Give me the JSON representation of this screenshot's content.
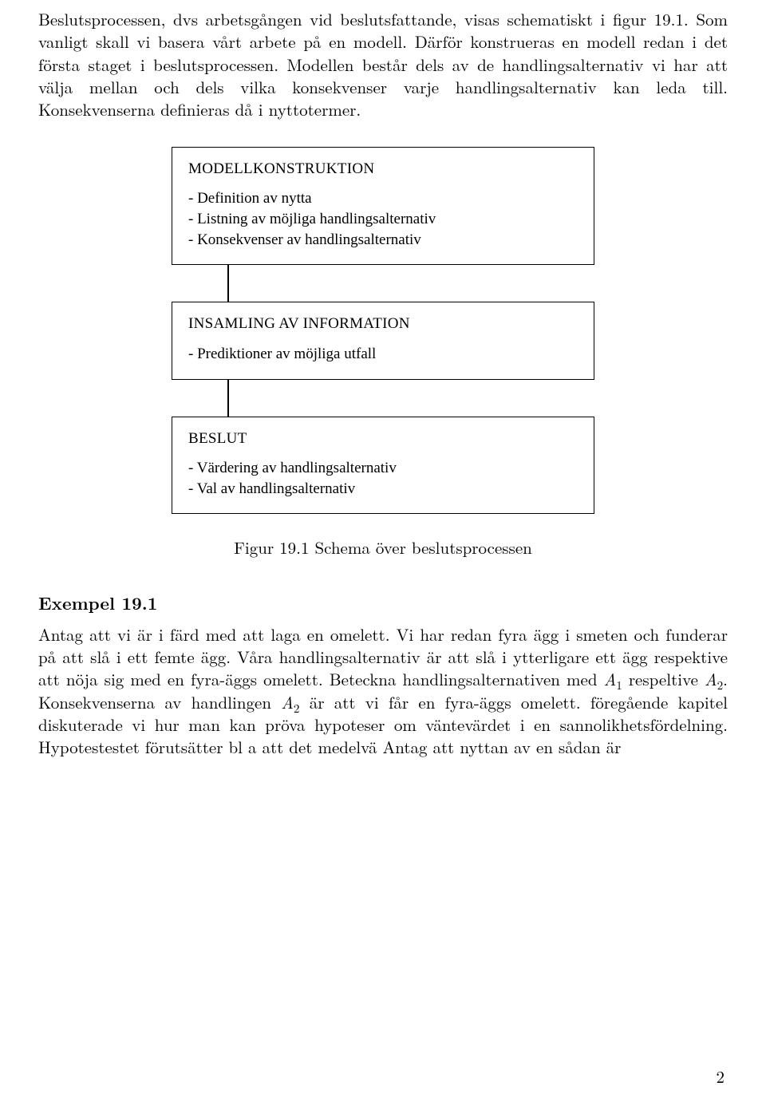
{
  "paragraph1": "Beslutsprocessen, dvs arbetsgången vid beslutsfattande, visas schematiskt i figur 19.1. Som vanligt skall vi basera vårt arbete på en modell. Därför konstrueras en modell redan i det första staget i beslutsprocessen. Modellen består dels av de handlingsalternativ vi har att välja mellan och dels vilka konsekvenser varje handlingsalternativ kan leda till. Konsekvenserna definieras då i nyttotermer.",
  "flow": {
    "box1": {
      "title": "MODELLKONSTRUKTION",
      "items": [
        "- Definition av nytta",
        "- Listning av möjliga handlingsalternativ",
        "- Konsekvenser av handlingsalternativ"
      ]
    },
    "box2": {
      "title": "INSAMLING AV INFORMATION",
      "items": [
        "- Prediktioner av möjliga utfall"
      ]
    },
    "box3": {
      "title": "BESLUT",
      "items": [
        "- Värdering av handlingsalternativ",
        "- Val av handlingsalternativ"
      ]
    }
  },
  "figure_caption": "Figur 19.1 Schema över beslutsprocessen",
  "example_heading": "Exempel 19.1",
  "paragraph2_a": "Antag att vi är i färd med att laga en omelett. Vi har redan fyra ägg i smeten och funderar på att slå i ett femte ägg. Våra handlingsalternativ är att slå i ytterligare ett ägg respektive att nöja sig med en fyra-äggs omelett. Beteckna handlingsalternativen med ",
  "paragraph2_b": " respeltive ",
  "paragraph2_c": ". Konsekvenserna av handlingen ",
  "paragraph2_d": " är att vi får en fyra-äggs omelett. föregående kapitel diskuterade vi hur man kan pröva hypoteser om väntevärdet i en sannolikhetsfördelning. Hypotestestet förutsätter bl a att det medelvä Antag att nyttan av en sådan är",
  "A": "A",
  "sub1": "1",
  "sub2": "2",
  "page_number": "2"
}
